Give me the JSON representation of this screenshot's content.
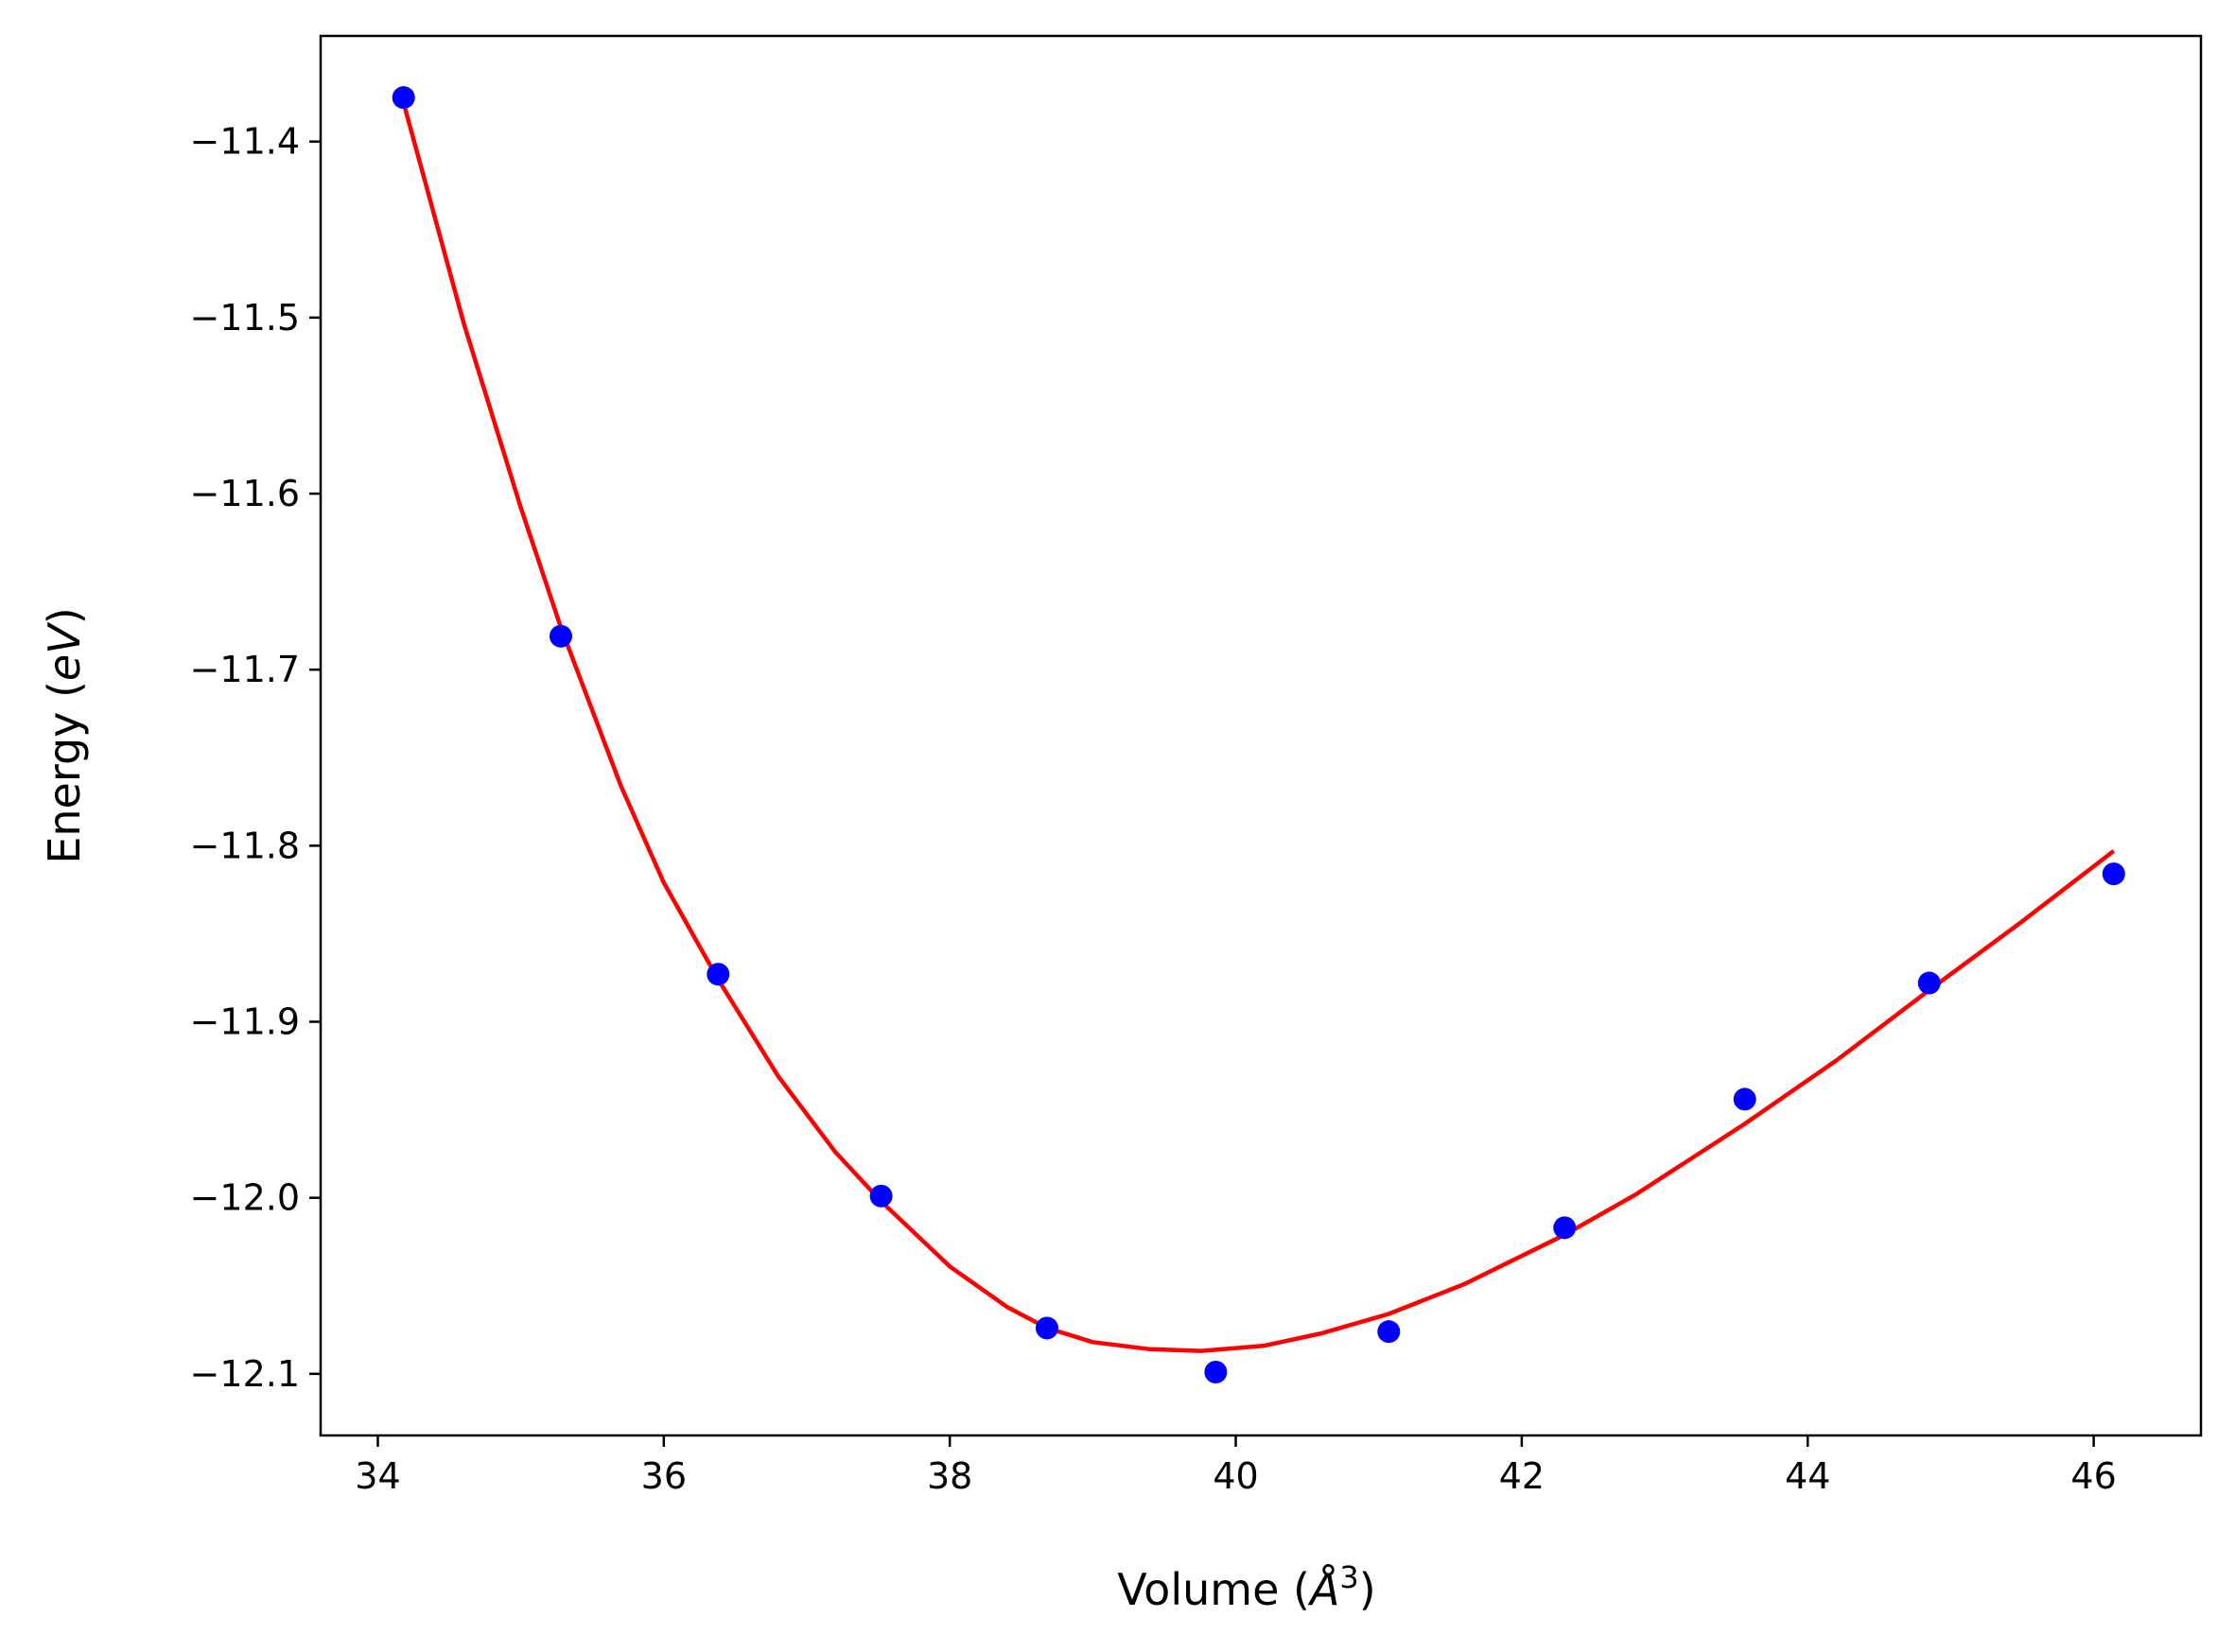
{
  "chart_data": {
    "type": "scatter",
    "title": "",
    "xlabel": "Volume (Å³)",
    "xlabel_parts": {
      "main": "Volume (",
      "symbol": "Å",
      "superscript": "3",
      "close": ")"
    },
    "ylabel": "Energy (eV)",
    "ylabel_parts": {
      "main": "Energy (",
      "unit": "eV",
      "close": ")"
    },
    "xlim": [
      33.6,
      46.75
    ],
    "ylim": [
      -12.135,
      -11.34
    ],
    "grid": false,
    "legend": "none",
    "x_ticks": [
      34,
      36,
      38,
      40,
      42,
      44,
      46
    ],
    "x_tick_labels": [
      "34",
      "36",
      "38",
      "40",
      "42",
      "44",
      "46"
    ],
    "y_ticks": [
      -11.4,
      -11.5,
      -11.6,
      -11.7,
      -11.8,
      -11.9,
      -12.0,
      -12.1
    ],
    "y_tick_labels": [
      "−11.4",
      "−11.5",
      "−11.6",
      "−11.7",
      "−11.8",
      "−11.9",
      "−12.0",
      "−12.1"
    ],
    "series": [
      {
        "kind": "points",
        "color": "#0000ff",
        "x": [
          34.18,
          35.28,
          36.38,
          37.52,
          38.68,
          39.86,
          41.07,
          42.3,
          43.56,
          44.85,
          46.14
        ],
        "y": [
          -11.375,
          -11.681,
          -11.873,
          -11.999,
          -12.074,
          -12.099,
          -12.076,
          -12.017,
          -11.944,
          -11.878,
          -11.816
        ]
      },
      {
        "kind": "curve",
        "color": "#ff0000",
        "x": [
          34.18,
          34.6,
          35.0,
          35.28,
          35.7,
          36.0,
          36.38,
          36.8,
          37.2,
          37.52,
          38.0,
          38.4,
          38.68,
          39.0,
          39.4,
          39.76,
          40.2,
          40.6,
          41.07,
          41.6,
          42.3,
          42.8,
          43.56,
          44.2,
          44.85,
          45.5,
          46.14
        ],
        "y": [
          -11.378,
          -11.503,
          -11.608,
          -11.676,
          -11.766,
          -11.821,
          -11.876,
          -11.931,
          -11.974,
          -12.002,
          -12.039,
          -12.062,
          -12.074,
          -12.082,
          -12.086,
          -12.087,
          -12.084,
          -12.077,
          -12.066,
          -12.049,
          -12.021,
          -11.998,
          -11.958,
          -11.922,
          -11.882,
          -11.843,
          -11.803
        ]
      }
    ]
  }
}
